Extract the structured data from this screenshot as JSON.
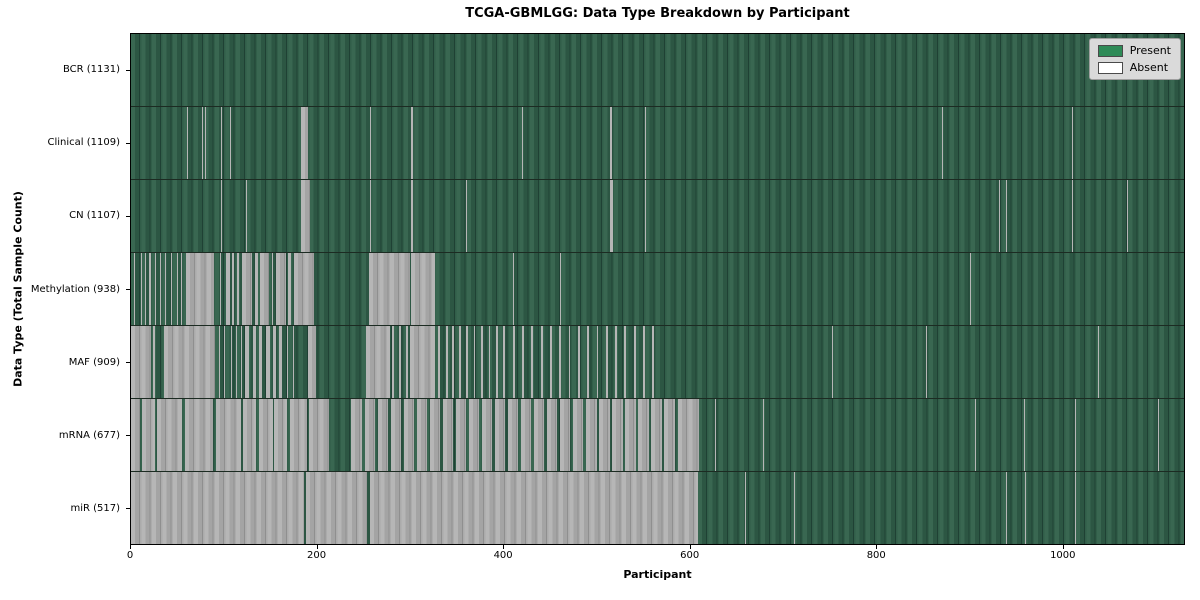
{
  "figure": {
    "kind": "matplotlib-style presence/absence heatmap"
  },
  "colors": {
    "present_legend": "#2e8b57",
    "absent_legend": "#ffffff",
    "present_fill": "#2c5643",
    "absent_fill": "#a4a4a4",
    "legend_background": "#dadada",
    "axes_border": "#000000"
  },
  "chart_data": {
    "type": "heatmap",
    "title": "TCGA-GBMLGG: Data Type Breakdown by Participant",
    "xlabel": "Participant",
    "ylabel": "Data Type (Total Sample Count)",
    "xlim": [
      0,
      1131
    ],
    "x_ticks": [
      0,
      200,
      400,
      600,
      800,
      1000
    ],
    "grid": false,
    "legend_position": "upper right",
    "legend_items": [
      {
        "label": "Present",
        "color": "#2e8b57"
      },
      {
        "label": "Absent",
        "color": "#ffffff"
      }
    ],
    "rows": [
      {
        "label": "BCR (1131)",
        "name": "bcr",
        "total_present": 1131,
        "absent_ranges": []
      },
      {
        "label": "Clinical (1109)",
        "name": "clinical",
        "total_present": 1109,
        "absent_ranges": [
          [
            60,
            61
          ],
          [
            76,
            77
          ],
          [
            80,
            81
          ],
          [
            97,
            98
          ],
          [
            106,
            107
          ],
          [
            183,
            190
          ],
          [
            257,
            258
          ],
          [
            301,
            303
          ],
          [
            355,
            356
          ],
          [
            420,
            421
          ],
          [
            515,
            517
          ],
          [
            552,
            553
          ],
          [
            871,
            872
          ],
          [
            1011,
            1012
          ]
        ]
      },
      {
        "label": "CN (1107)",
        "name": "cn",
        "total_present": 1107,
        "absent_ranges": [
          [
            97,
            98
          ],
          [
            124,
            125
          ],
          [
            183,
            192
          ],
          [
            257,
            258
          ],
          [
            301,
            303
          ],
          [
            360,
            361
          ],
          [
            515,
            518
          ],
          [
            552,
            553
          ],
          [
            932,
            933
          ],
          [
            940,
            941
          ],
          [
            1011,
            1012
          ],
          [
            1070,
            1071
          ]
        ]
      },
      {
        "label": "Methylation (938)",
        "name": "methylation",
        "total_present": 938,
        "absent_ranges": [
          [
            3,
            4
          ],
          [
            7,
            8
          ],
          [
            11,
            12
          ],
          [
            15,
            16
          ],
          [
            19,
            21
          ],
          [
            26,
            27
          ],
          [
            31,
            32
          ],
          [
            37,
            38
          ],
          [
            43,
            44
          ],
          [
            49,
            50
          ],
          [
            54,
            55
          ],
          [
            59,
            89
          ],
          [
            96,
            97
          ],
          [
            102,
            106
          ],
          [
            109,
            111
          ],
          [
            114,
            116
          ],
          [
            119,
            130
          ],
          [
            133,
            136
          ],
          [
            139,
            148
          ],
          [
            151,
            153
          ],
          [
            156,
            166
          ],
          [
            169,
            172
          ],
          [
            175,
            197
          ],
          [
            256,
            300
          ],
          [
            301,
            327
          ],
          [
            410,
            411
          ],
          [
            461,
            462
          ],
          [
            514,
            515
          ],
          [
            901,
            902
          ]
        ]
      },
      {
        "label": "MAF (909)",
        "name": "maf",
        "total_present": 909,
        "absent_ranges": [
          [
            0,
            22
          ],
          [
            24,
            26
          ],
          [
            35,
            90
          ],
          [
            95,
            96
          ],
          [
            100,
            101
          ],
          [
            107,
            108
          ],
          [
            113,
            114
          ],
          [
            118,
            119
          ],
          [
            122,
            127
          ],
          [
            131,
            134
          ],
          [
            138,
            141
          ],
          [
            145,
            149
          ],
          [
            153,
            156
          ],
          [
            159,
            162
          ],
          [
            168,
            169
          ],
          [
            174,
            175
          ],
          [
            190,
            199
          ],
          [
            252,
            278
          ],
          [
            280,
            283
          ],
          [
            288,
            290
          ],
          [
            295,
            297
          ],
          [
            300,
            326
          ],
          [
            330,
            332
          ],
          [
            338,
            340
          ],
          [
            345,
            347
          ],
          [
            352,
            354
          ],
          [
            360,
            362
          ],
          [
            368,
            370
          ],
          [
            376,
            378
          ],
          [
            384,
            386
          ],
          [
            392,
            394
          ],
          [
            400,
            402
          ],
          [
            410,
            412
          ],
          [
            420,
            422
          ],
          [
            430,
            432
          ],
          [
            440,
            442
          ],
          [
            450,
            452
          ],
          [
            460,
            462
          ],
          [
            470,
            472
          ],
          [
            480,
            482
          ],
          [
            490,
            492
          ],
          [
            500,
            502
          ],
          [
            510,
            512
          ],
          [
            520,
            522
          ],
          [
            530,
            532
          ],
          [
            540,
            542
          ],
          [
            550,
            552
          ],
          [
            560,
            562
          ],
          [
            753,
            754
          ],
          [
            854,
            855
          ],
          [
            1039,
            1040
          ]
        ]
      },
      {
        "label": "mRNA (677)",
        "name": "mrna",
        "total_present": 677,
        "absent_ranges": [
          [
            0,
            10
          ],
          [
            12,
            26
          ],
          [
            28,
            55
          ],
          [
            58,
            88
          ],
          [
            91,
            118
          ],
          [
            120,
            134
          ],
          [
            137,
            152
          ],
          [
            154,
            168
          ],
          [
            171,
            189
          ],
          [
            191,
            213
          ],
          [
            236,
            248
          ],
          [
            251,
            262
          ],
          [
            265,
            276
          ],
          [
            279,
            290
          ],
          [
            293,
            304
          ],
          [
            307,
            318
          ],
          [
            321,
            332
          ],
          [
            335,
            346
          ],
          [
            349,
            360
          ],
          [
            363,
            374
          ],
          [
            377,
            388
          ],
          [
            391,
            402
          ],
          [
            405,
            416
          ],
          [
            419,
            430
          ],
          [
            433,
            444
          ],
          [
            447,
            458
          ],
          [
            461,
            472
          ],
          [
            475,
            486
          ],
          [
            489,
            500
          ],
          [
            503,
            514
          ],
          [
            517,
            528
          ],
          [
            531,
            542
          ],
          [
            545,
            556
          ],
          [
            559,
            570
          ],
          [
            573,
            584
          ],
          [
            587,
            610
          ],
          [
            627,
            628
          ],
          [
            679,
            680
          ],
          [
            907,
            908
          ],
          [
            959,
            960
          ],
          [
            1014,
            1015
          ],
          [
            1103,
            1104
          ]
        ]
      },
      {
        "label": "miR (517)",
        "name": "mir",
        "total_present": 517,
        "absent_ranges": [
          [
            0,
            186
          ],
          [
            188,
            254
          ],
          [
            257,
            609
          ],
          [
            660,
            661
          ],
          [
            712,
            713
          ],
          [
            940,
            941
          ],
          [
            960,
            961
          ],
          [
            1014,
            1015
          ]
        ]
      }
    ]
  }
}
